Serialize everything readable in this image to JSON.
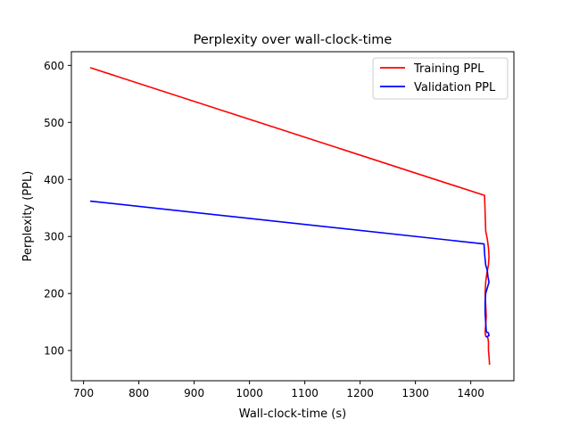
{
  "chart_data": {
    "type": "line",
    "title": "Perplexity over wall-clock-time",
    "xlabel": "Wall-clock-time (s)",
    "ylabel": "Perplexity (PPL)",
    "xlim": [
      678,
      1478
    ],
    "ylim": [
      47,
      624
    ],
    "xticks": [
      700,
      800,
      900,
      1000,
      1100,
      1200,
      1300,
      1400
    ],
    "yticks": [
      100,
      200,
      300,
      400,
      500,
      600
    ],
    "grid": false,
    "legend_position": "top-right",
    "series": [
      {
        "name": "Training PPL",
        "color": "#ff0000",
        "x": [
          712,
          1425,
          1426,
          1427,
          1430,
          1432,
          1433,
          1432,
          1429,
          1427,
          1426,
          1427,
          1428,
          1427,
          1426,
          1427,
          1431,
          1432,
          1432,
          1433,
          1434
        ],
        "y": [
          596,
          372,
          340,
          310,
          295,
          280,
          265,
          250,
          235,
          220,
          200,
          180,
          160,
          145,
          132,
          125,
          122,
          115,
          100,
          90,
          75
        ]
      },
      {
        "name": "Validation PPL",
        "color": "#0000ff",
        "x": [
          712,
          1424,
          1425,
          1427,
          1430,
          1431,
          1433,
          1430,
          1427,
          1426,
          1426,
          1427,
          1428,
          1429,
          1432,
          1433,
          1428
        ],
        "y": [
          362,
          287,
          270,
          250,
          240,
          230,
          220,
          210,
          200,
          185,
          165,
          150,
          135,
          132,
          131,
          126,
          124
        ]
      }
    ]
  }
}
